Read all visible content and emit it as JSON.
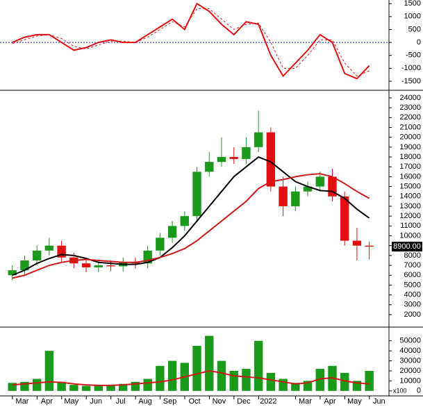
{
  "chart_data": [
    {
      "type": "line",
      "x": [
        0,
        0.5,
        1,
        1.5,
        2,
        2.5,
        3,
        3.5,
        4,
        4.5,
        5,
        5.5,
        6,
        6.5,
        7,
        7.5,
        8,
        8.5,
        9,
        9.5,
        10,
        10.5,
        11,
        11.5,
        12,
        12.5,
        13,
        13.5,
        14,
        14.5
      ],
      "xlim": [
        -0.5,
        15.3
      ],
      "ylim": [
        -1850,
        1640
      ],
      "yticks": [
        1500,
        1000,
        500,
        0,
        -500,
        -1000,
        -1500
      ],
      "hline": 0,
      "series": [
        {
          "color": "#e01010",
          "style": "solid",
          "values": [
            0,
            200,
            300,
            300,
            0,
            -300,
            -200,
            0,
            100,
            0,
            0,
            300,
            600,
            900,
            500,
            1500,
            1200,
            700,
            300,
            800,
            700,
            -500,
            -1300,
            -800,
            -300,
            300,
            0,
            -1200,
            -1400,
            -900
          ]
        },
        {
          "color": "#e01010",
          "style": "dashed",
          "values": [
            -50,
            100,
            250,
            300,
            150,
            -150,
            -250,
            -100,
            50,
            50,
            0,
            200,
            500,
            800,
            600,
            1300,
            1300,
            900,
            500,
            700,
            750,
            0,
            -1000,
            -1000,
            -500,
            100,
            100,
            -800,
            -1300,
            -1100
          ]
        }
      ]
    },
    {
      "type": "candlestick",
      "x": [
        0,
        0.5,
        1,
        1.5,
        2,
        2.5,
        3,
        3.5,
        4,
        4.5,
        5,
        5.5,
        6,
        6.5,
        7,
        7.5,
        8,
        8.5,
        9,
        9.5,
        10,
        10.5,
        11,
        11.5,
        12,
        12.5,
        13,
        13.5,
        14,
        14.5
      ],
      "xlim": [
        -0.5,
        15.3
      ],
      "ylim": [
        800,
        24700
      ],
      "yticks": [
        24000,
        23000,
        22000,
        21000,
        20000,
        19000,
        18000,
        17000,
        16000,
        15000,
        14000,
        13000,
        12000,
        11000,
        10000,
        9000,
        8000,
        7000,
        6000,
        5000,
        4000,
        3000,
        2000
      ],
      "up_color": "#1a9a1a",
      "down_color": "#e01010",
      "open": [
        6000,
        6500,
        7500,
        8500,
        9000,
        7800,
        7200,
        6800,
        7000,
        6900,
        7300,
        7200,
        8500,
        9800,
        11000,
        12000,
        16500,
        17500,
        18000,
        17800,
        19000,
        20500,
        15000,
        13000,
        14500,
        15000,
        16000,
        14000,
        9500,
        9000
      ],
      "high": [
        7000,
        8000,
        9000,
        9800,
        9500,
        8300,
        7700,
        7500,
        7500,
        7800,
        7800,
        9000,
        10300,
        11500,
        12500,
        17000,
        18500,
        20000,
        19000,
        20000,
        22700,
        21000,
        16000,
        15000,
        15500,
        16500,
        16800,
        14500,
        10800,
        9400
      ],
      "low": [
        5500,
        6000,
        7000,
        8000,
        7300,
        6700,
        6300,
        6300,
        6400,
        6400,
        6700,
        6700,
        8000,
        9300,
        10500,
        11500,
        16000,
        17000,
        17300,
        17300,
        18500,
        14500,
        12000,
        12500,
        14000,
        14500,
        13500,
        9000,
        7500,
        7600
      ],
      "close": [
        6500,
        7500,
        8500,
        9000,
        7800,
        7200,
        6800,
        7000,
        6900,
        7300,
        7200,
        8500,
        9800,
        11000,
        12000,
        16500,
        17500,
        18000,
        17800,
        19000,
        20500,
        15000,
        13000,
        14500,
        15000,
        16000,
        14000,
        9500,
        9000,
        8900
      ],
      "series": [
        {
          "color": "#000000",
          "values": [
            6000,
            6500,
            7200,
            7700,
            8100,
            8000,
            7700,
            7300,
            7200,
            7100,
            7100,
            7300,
            7800,
            8800,
            10000,
            11500,
            13000,
            14500,
            16000,
            17000,
            18000,
            17500,
            16500,
            15500,
            15000,
            14600,
            14500,
            13800,
            12700,
            11800
          ]
        },
        {
          "color": "#d01818",
          "values": [
            5700,
            6000,
            6500,
            7000,
            7300,
            7500,
            7600,
            7500,
            7400,
            7300,
            7300,
            7500,
            7800,
            8200,
            8700,
            9500,
            10500,
            11500,
            12500,
            13500,
            14800,
            15500,
            15700,
            16000,
            16200,
            16300,
            16000,
            15300,
            14500,
            13800
          ]
        }
      ],
      "last_price": {
        "value": 8900,
        "label": "8900.00"
      }
    },
    {
      "type": "bar",
      "x": [
        0,
        0.5,
        1,
        1.5,
        2,
        2.5,
        3,
        3.5,
        4,
        4.5,
        5,
        5.5,
        6,
        6.5,
        7,
        7.5,
        8,
        8.5,
        9,
        9.5,
        10,
        10.5,
        11,
        11.5,
        12,
        12.5,
        13,
        13.5,
        14,
        14.5
      ],
      "xlim": [
        -0.5,
        15.3
      ],
      "ylim": [
        -5000,
        63000
      ],
      "yticks": [
        50000,
        40000,
        30000,
        20000,
        10000,
        0
      ],
      "unit_label": "x100",
      "color": "#1a9a1a",
      "values": [
        8000,
        9000,
        12000,
        40000,
        9000,
        6000,
        5000,
        6000,
        5000,
        7000,
        9000,
        12000,
        25000,
        30000,
        28000,
        45000,
        55000,
        30000,
        20000,
        22000,
        50000,
        18000,
        12000,
        8000,
        10000,
        22000,
        25000,
        18000,
        10000,
        20000
      ],
      "series": [
        {
          "color": "#d01818",
          "values": [
            6000,
            7000,
            8000,
            9000,
            8500,
            7000,
            6000,
            5500,
            5500,
            6000,
            7000,
            8000,
            9000,
            11000,
            14000,
            17000,
            20000,
            18000,
            15000,
            14000,
            13000,
            11000,
            9000,
            7000,
            8000,
            12000,
            13000,
            10000,
            8000,
            7000
          ]
        }
      ],
      "xticks": [
        {
          "value": 0.4,
          "label": "Mar"
        },
        {
          "value": 1.4,
          "label": "Apr"
        },
        {
          "value": 2.4,
          "label": "May"
        },
        {
          "value": 3.4,
          "label": "Jun"
        },
        {
          "value": 4.4,
          "label": "Jul"
        },
        {
          "value": 5.4,
          "label": "Aug"
        },
        {
          "value": 6.4,
          "label": "Sep"
        },
        {
          "value": 7.4,
          "label": "Oct"
        },
        {
          "value": 8.4,
          "label": "Nov"
        },
        {
          "value": 9.4,
          "label": "Dec"
        },
        {
          "value": 10.4,
          "label": "2022"
        },
        {
          "value": 11.9,
          "label": "Mar"
        },
        {
          "value": 12.9,
          "label": "Apr"
        },
        {
          "value": 13.9,
          "label": "May"
        },
        {
          "value": 14.9,
          "label": "Jun"
        }
      ]
    }
  ]
}
